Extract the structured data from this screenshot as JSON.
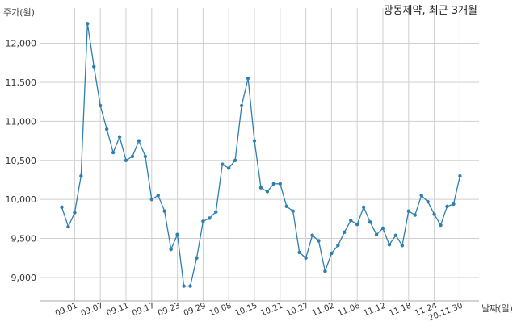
{
  "chart_data": {
    "type": "line",
    "title": "광동제약, 최근 3개월",
    "xlabel": "날짜(일)",
    "ylabel": "주가(원)",
    "ylim": [
      8700,
      12450
    ],
    "yticks": [
      9000,
      9500,
      10000,
      10500,
      11000,
      11500,
      12000
    ],
    "ytick_labels": [
      "9,000",
      "9,500",
      "10,000",
      "10,500",
      "11,000",
      "11,500",
      "12,000"
    ],
    "xticks": [
      "09.01",
      "09.07",
      "09.11",
      "09.17",
      "09.23",
      "09.29",
      "10.08",
      "10.15",
      "10.21",
      "10.27",
      "11.02",
      "11.06",
      "11.12",
      "11.18",
      "11.24",
      "20.11.30"
    ],
    "grid": true,
    "color": "#2e7fb0",
    "series": [
      {
        "values": [
          9900,
          9650,
          9830,
          10300,
          12250,
          11700,
          11200,
          10900,
          10600,
          10800,
          10500,
          10550,
          10750,
          10550,
          10000,
          10050,
          9850,
          9360,
          9550,
          8890,
          8890,
          9250,
          9720,
          9760,
          9840,
          10450,
          10400,
          10500,
          11200,
          11550,
          10750,
          10150,
          10100,
          10200,
          10200,
          9910,
          9850,
          9320,
          9250,
          9540,
          9470,
          9080,
          9310,
          9410,
          9580,
          9730,
          9680,
          9900,
          9710,
          9550,
          9630,
          9420,
          9540,
          9410,
          9850,
          9800,
          10050,
          9970,
          9810,
          9670,
          9910,
          9940,
          10300
        ]
      }
    ]
  }
}
